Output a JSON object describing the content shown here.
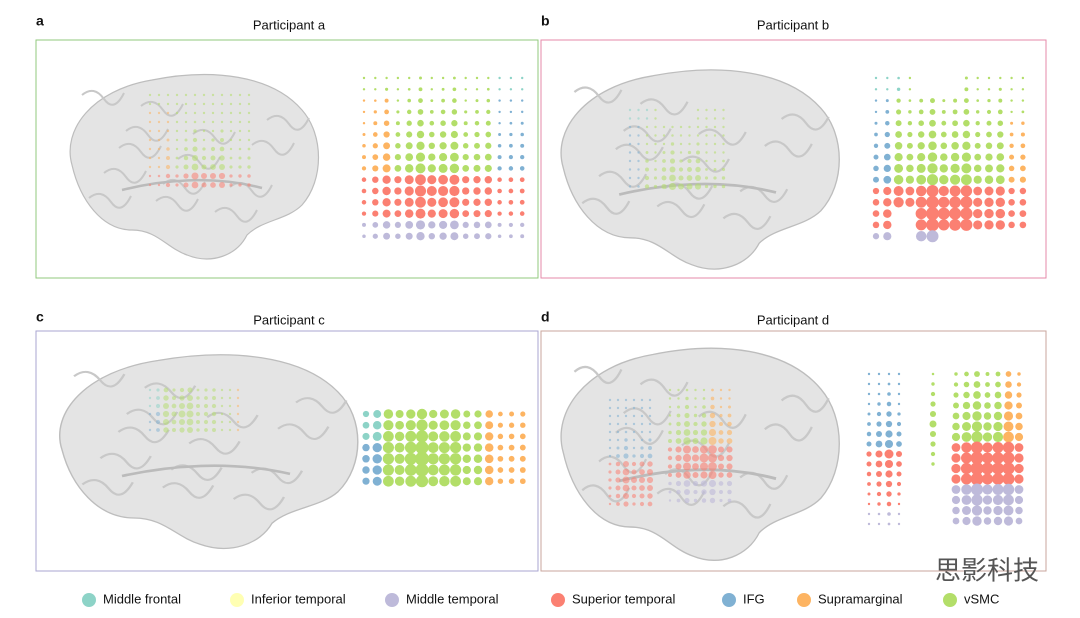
{
  "panels": [
    {
      "letter": "a",
      "title": "Participant a"
    },
    {
      "letter": "b",
      "title": "Participant b"
    },
    {
      "letter": "c",
      "title": "Participant c"
    },
    {
      "letter": "d",
      "title": "Participant d"
    }
  ],
  "legend": [
    {
      "label": "Middle frontal",
      "color": "#8dd3c7"
    },
    {
      "label": "Inferior temporal",
      "color": "#ffffb3"
    },
    {
      "label": "Middle temporal",
      "color": "#bebada"
    },
    {
      "label": "Superior temporal",
      "color": "#fb8072"
    },
    {
      "label": "IFG",
      "color": "#80b1d3"
    },
    {
      "label": "Supramarginal",
      "color": "#fdb462"
    },
    {
      "label": "vSMC",
      "color": "#b3de69"
    }
  ],
  "watermark": "思影科技"
}
